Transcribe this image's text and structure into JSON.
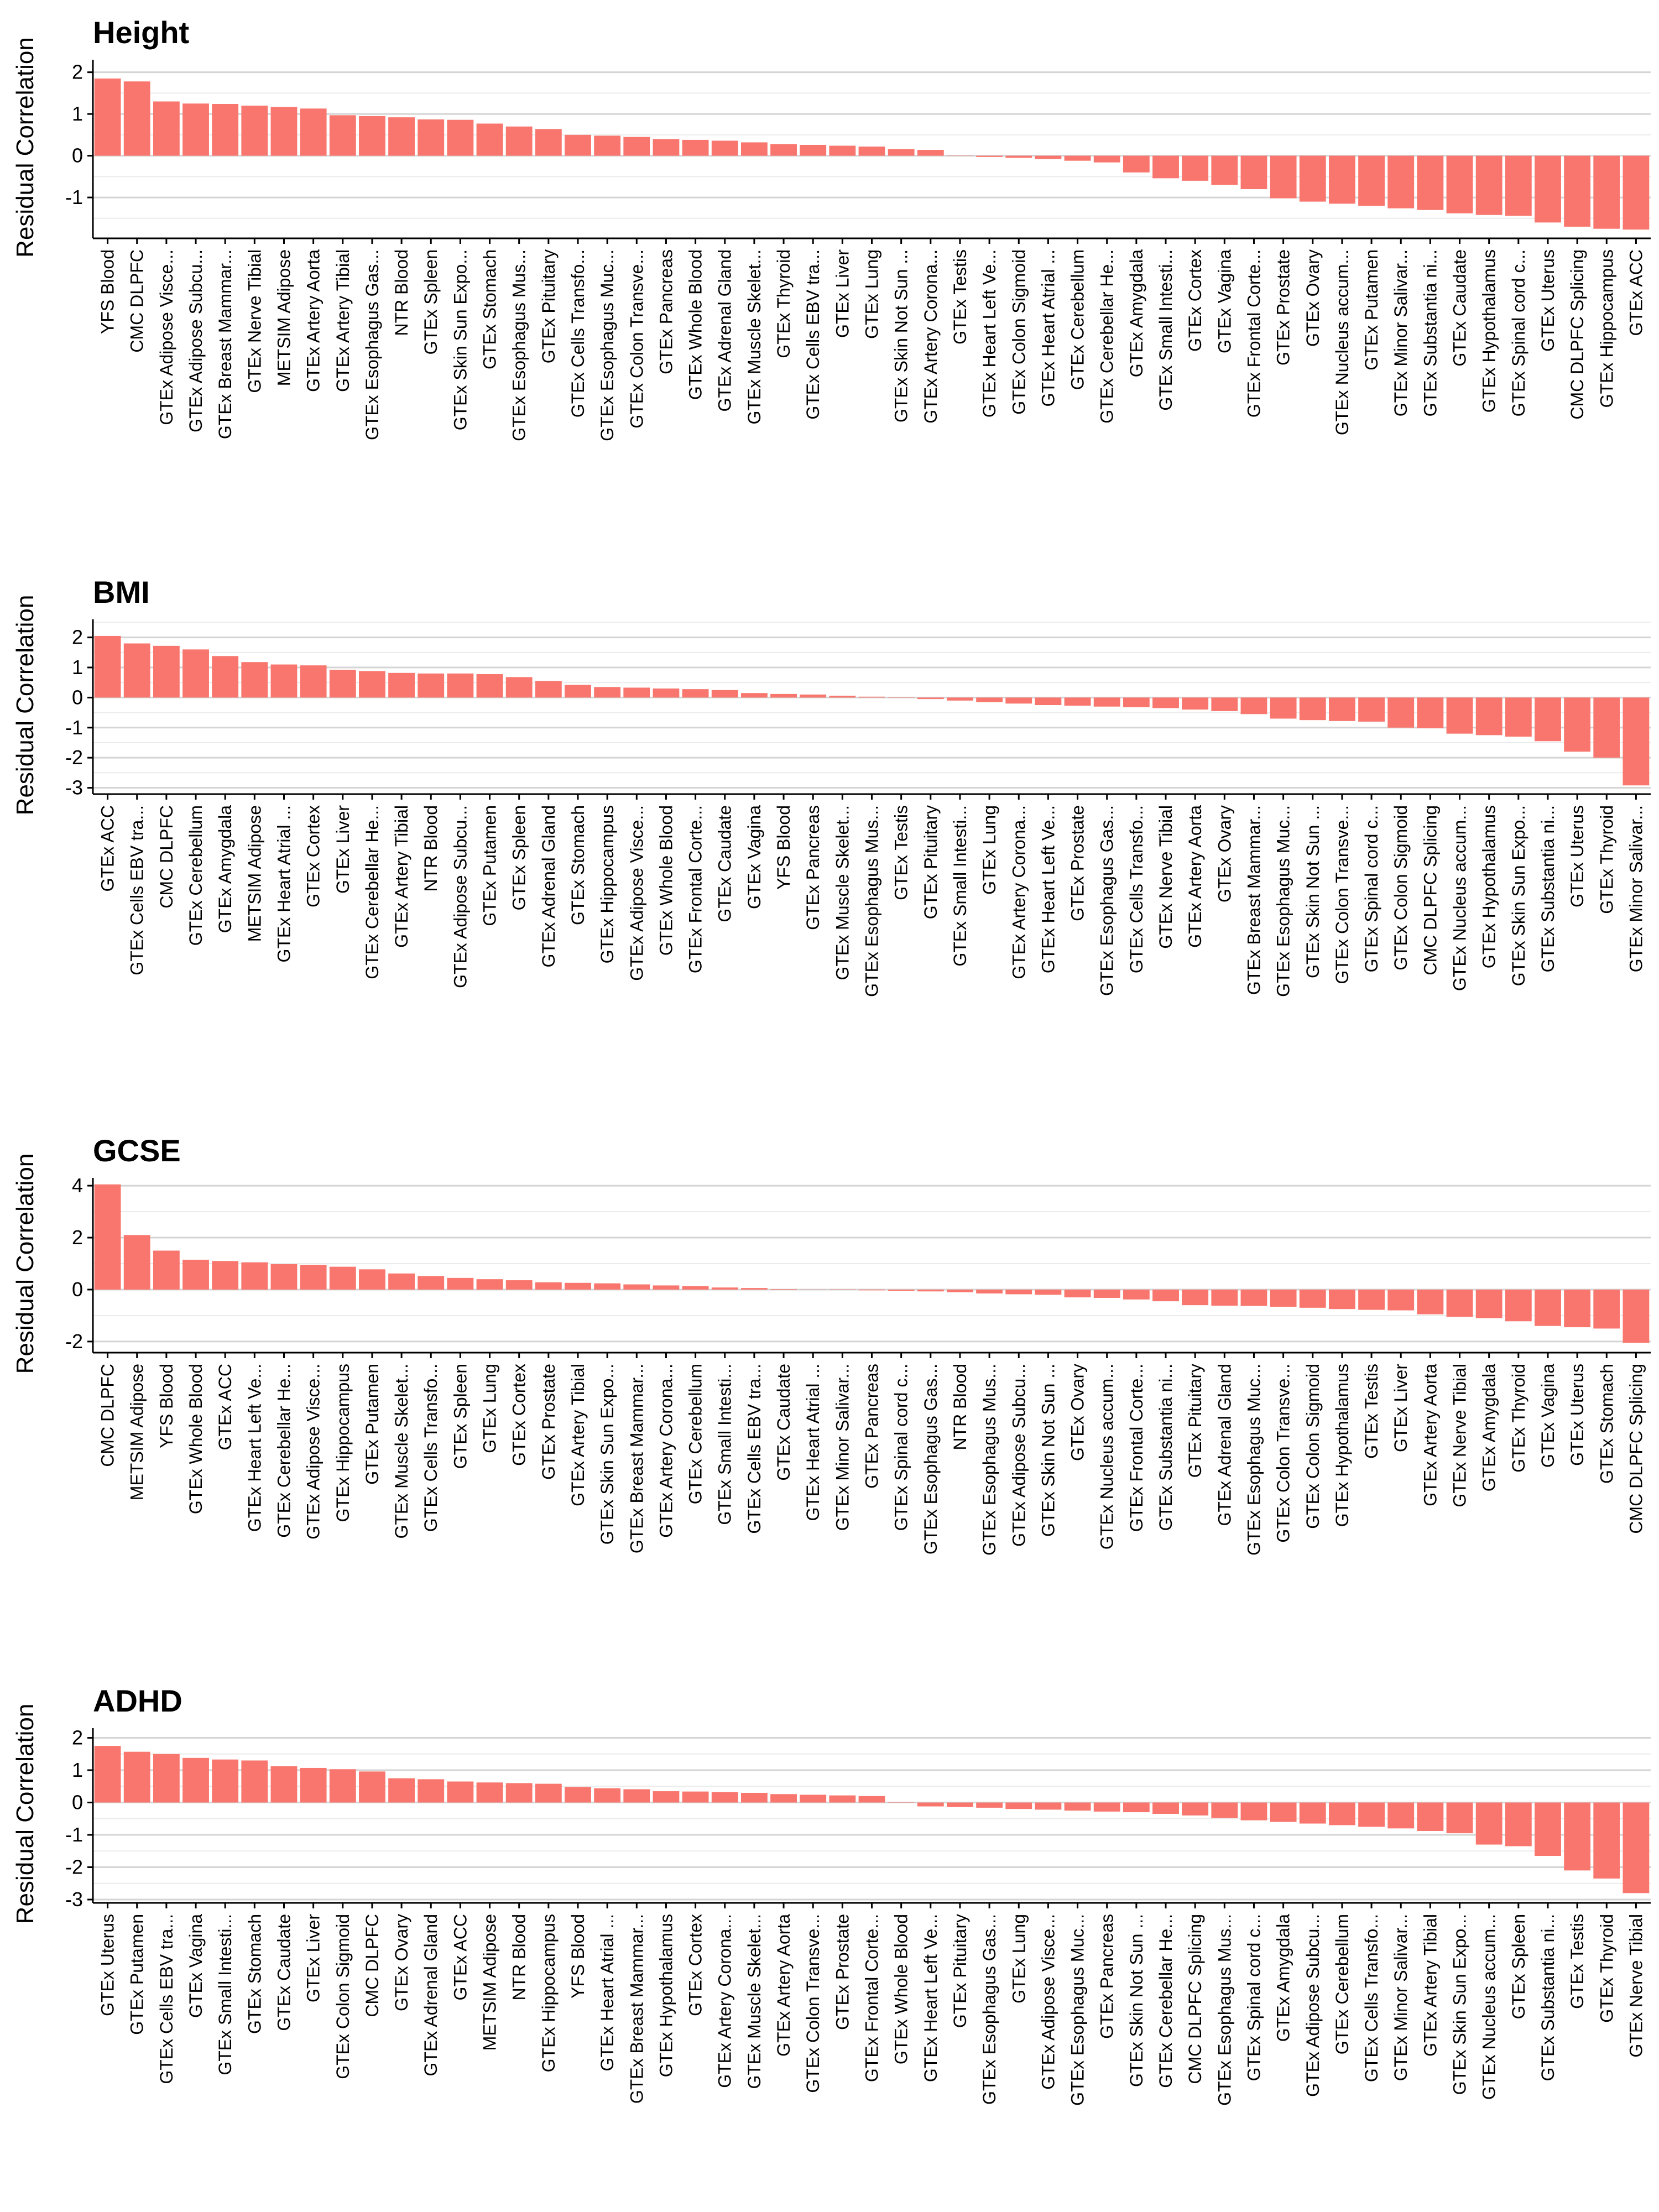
{
  "chart_data": [
    {
      "type": "bar",
      "title": "Height",
      "ylabel": "Residual Correlation",
      "xlabel": "",
      "ylim": [
        -1.9,
        2.3
      ],
      "yticks": [
        -1,
        0,
        1,
        2
      ],
      "grid": "horizontal",
      "bar_color": "#F8766D",
      "categories": [
        "YFS Blood",
        "CMC DLPFC",
        "GTEx Adipose Visce...",
        "GTEx Adipose Subcu...",
        "GTEx Breast Mammar...",
        "GTEx Nerve Tibial",
        "METSIM Adipose",
        "GTEx Artery Aorta",
        "GTEx Artery Tibial",
        "GTEx Esophagus Gas...",
        "NTR Blood",
        "GTEx Spleen",
        "GTEx Skin Sun Expo...",
        "GTEx Stomach",
        "GTEx Esophagus Mus...",
        "GTEx Pituitary",
        "GTEx Cells Transfo...",
        "GTEx Esophagus Muc...",
        "GTEx Colon Transve...",
        "GTEx Pancreas",
        "GTEx Whole Blood",
        "GTEx Adrenal Gland",
        "GTEx Muscle Skelet...",
        "GTEx Thyroid",
        "GTEx Cells EBV tra...",
        "GTEx Liver",
        "GTEx Lung",
        "GTEx Skin Not Sun ...",
        "GTEx Artery Corona...",
        "GTEx Testis",
        "GTEx Heart Left Ve...",
        "GTEx Colon Sigmoid",
        "GTEx Heart Atrial ...",
        "GTEx Cerebellum",
        "GTEx Cerebellar He...",
        "GTEx Amygdala",
        "GTEx Small Intesti...",
        "GTEx Cortex",
        "GTEx Vagina",
        "GTEx Frontal Corte...",
        "GTEx Prostate",
        "GTEx Ovary",
        "GTEx Nucleus accum...",
        "GTEx Putamen",
        "GTEx Minor Salivar...",
        "GTEx Substantia ni...",
        "GTEx Caudate",
        "GTEx Hypothalamus",
        "GTEx Spinal cord c...",
        "GTEx Uterus",
        "CMC DLPFC Splicing",
        "GTEx Hippocampus",
        "GTEx ACC"
      ],
      "values": [
        1.85,
        1.78,
        1.3,
        1.25,
        1.24,
        1.2,
        1.17,
        1.13,
        0.97,
        0.95,
        0.92,
        0.87,
        0.86,
        0.77,
        0.7,
        0.64,
        0.5,
        0.48,
        0.45,
        0.4,
        0.38,
        0.36,
        0.32,
        0.28,
        0.26,
        0.24,
        0.22,
        0.16,
        0.14,
        0.0,
        -0.03,
        -0.05,
        -0.08,
        -0.12,
        -0.16,
        -0.4,
        -0.54,
        -0.6,
        -0.7,
        -0.8,
        -1.02,
        -1.1,
        -1.15,
        -1.2,
        -1.26,
        -1.3,
        -1.38,
        -1.42,
        -1.44,
        -1.6,
        -1.7,
        -1.75,
        -1.77
      ]
    },
    {
      "type": "bar",
      "title": "BMI",
      "ylabel": "Residual Correlation",
      "xlabel": "",
      "ylim": [
        -3.1,
        2.6
      ],
      "yticks": [
        -3,
        -2,
        -1,
        0,
        1,
        2
      ],
      "grid": "horizontal",
      "bar_color": "#F8766D",
      "categories": [
        "GTEx ACC",
        "GTEx Cells EBV tra...",
        "CMC DLPFC",
        "GTEx Cerebellum",
        "GTEx Amygdala",
        "METSIM Adipose",
        "GTEx Heart Atrial ...",
        "GTEx Cortex",
        "GTEx Liver",
        "GTEx Cerebellar He...",
        "GTEx Artery Tibial",
        "NTR Blood",
        "GTEx Adipose Subcu...",
        "GTEx Putamen",
        "GTEx Spleen",
        "GTEx Adrenal Gland",
        "GTEx Stomach",
        "GTEx Hippocampus",
        "GTEx Adipose Visce...",
        "GTEx Whole Blood",
        "GTEx Frontal Corte...",
        "GTEx Caudate",
        "GTEx Vagina",
        "YFS Blood",
        "GTEx Pancreas",
        "GTEx Muscle Skelet...",
        "GTEx Esophagus Mus...",
        "GTEx Testis",
        "GTEx Pituitary",
        "GTEx Small Intesti...",
        "GTEx Lung",
        "GTEx Artery Corona...",
        "GTEx Heart Left Ve...",
        "GTEx Prostate",
        "GTEx Esophagus Gas...",
        "GTEx Cells Transfo...",
        "GTEx Nerve Tibial",
        "GTEx Artery Aorta",
        "GTEx Ovary",
        "GTEx Breast Mammar...",
        "GTEx Esophagus Muc...",
        "GTEx Skin Not Sun ...",
        "GTEx Colon Transve...",
        "GTEx Spinal cord c...",
        "GTEx Colon Sigmoid",
        "CMC DLPFC Splicing",
        "GTEx Nucleus accum...",
        "GTEx Hypothalamus",
        "GTEx Skin Sun Expo...",
        "GTEx Substantia ni...",
        "GTEx Uterus",
        "GTEx Thyroid",
        "GTEx Minor Salivar..."
      ],
      "values": [
        2.05,
        1.8,
        1.72,
        1.6,
        1.38,
        1.18,
        1.1,
        1.07,
        0.92,
        0.88,
        0.82,
        0.8,
        0.8,
        0.78,
        0.68,
        0.55,
        0.42,
        0.35,
        0.33,
        0.3,
        0.28,
        0.25,
        0.15,
        0.12,
        0.1,
        0.06,
        0.03,
        0.0,
        -0.05,
        -0.1,
        -0.15,
        -0.2,
        -0.25,
        -0.27,
        -0.3,
        -0.32,
        -0.35,
        -0.4,
        -0.45,
        -0.55,
        -0.7,
        -0.75,
        -0.78,
        -0.8,
        -1.0,
        -1.02,
        -1.2,
        -1.25,
        -1.3,
        -1.45,
        -1.8,
        -2.0,
        -2.92
      ]
    },
    {
      "type": "bar",
      "title": "GCSE",
      "ylabel": "Residual Correlation",
      "xlabel": "",
      "ylim": [
        -2.3,
        4.3
      ],
      "yticks": [
        -2,
        0,
        2,
        4
      ],
      "grid": "horizontal",
      "bar_color": "#F8766D",
      "categories": [
        "CMC DLPFC",
        "METSIM Adipose",
        "YFS Blood",
        "GTEx Whole Blood",
        "GTEx ACC",
        "GTEx Heart Left Ve...",
        "GTEx Cerebellar He...",
        "GTEx Adipose Visce...",
        "GTEx Hippocampus",
        "GTEx Putamen",
        "GTEx Muscle Skelet...",
        "GTEx Cells Transfo...",
        "GTEx Spleen",
        "GTEx Lung",
        "GTEx Cortex",
        "GTEx Prostate",
        "GTEx Artery Tibial",
        "GTEx Skin Sun Expo...",
        "GTEx Breast Mammar...",
        "GTEx Artery Corona...",
        "GTEx Cerebellum",
        "GTEx Small Intesti...",
        "GTEx Cells EBV tra...",
        "GTEx Caudate",
        "GTEx Heart Atrial ...",
        "GTEx Minor Salivar...",
        "GTEx Pancreas",
        "GTEx Spinal cord c...",
        "GTEx Esophagus Gas...",
        "NTR Blood",
        "GTEx Esophagus Mus...",
        "GTEx Adipose Subcu...",
        "GTEx Skin Not Sun ...",
        "GTEx Ovary",
        "GTEx Nucleus accum...",
        "GTEx Frontal Corte...",
        "GTEx Substantia ni...",
        "GTEx Pituitary",
        "GTEx Adrenal Gland",
        "GTEx Esophagus Muc...",
        "GTEx Colon Transve...",
        "GTEx Colon Sigmoid",
        "GTEx Hypothalamus",
        "GTEx Testis",
        "GTEx Liver",
        "GTEx Artery Aorta",
        "GTEx Nerve Tibial",
        "GTEx Amygdala",
        "GTEx Thyroid",
        "GTEx Vagina",
        "GTEx Uterus",
        "GTEx Stomach",
        "CMC DLPFC Splicing"
      ],
      "values": [
        4.05,
        2.1,
        1.5,
        1.15,
        1.1,
        1.05,
        0.98,
        0.95,
        0.88,
        0.78,
        0.62,
        0.52,
        0.45,
        0.4,
        0.36,
        0.28,
        0.26,
        0.24,
        0.2,
        0.16,
        0.13,
        0.08,
        0.06,
        0.02,
        0.0,
        -0.02,
        -0.03,
        -0.05,
        -0.07,
        -0.1,
        -0.15,
        -0.18,
        -0.2,
        -0.3,
        -0.32,
        -0.38,
        -0.45,
        -0.6,
        -0.62,
        -0.63,
        -0.66,
        -0.7,
        -0.75,
        -0.78,
        -0.8,
        -0.95,
        -1.05,
        -1.1,
        -1.22,
        -1.4,
        -1.45,
        -1.5,
        -2.05
      ]
    },
    {
      "type": "bar",
      "title": "ADHD",
      "ylabel": "Residual Correlation",
      "xlabel": "",
      "ylim": [
        -3.0,
        2.3
      ],
      "yticks": [
        -3,
        -2,
        -1,
        0,
        1,
        2
      ],
      "grid": "horizontal",
      "bar_color": "#F8766D",
      "categories": [
        "GTEx Uterus",
        "GTEx Putamen",
        "GTEx Cells EBV tra...",
        "GTEx Vagina",
        "GTEx Small Intesti...",
        "GTEx Stomach",
        "GTEx Caudate",
        "GTEx Liver",
        "GTEx Colon Sigmoid",
        "CMC DLPFC",
        "GTEx Ovary",
        "GTEx Adrenal Gland",
        "GTEx ACC",
        "METSIM Adipose",
        "NTR Blood",
        "GTEx Hippocampus",
        "YFS Blood",
        "GTEx Heart Atrial ...",
        "GTEx Breast Mammar...",
        "GTEx Hypothalamus",
        "GTEx Cortex",
        "GTEx Artery Corona...",
        "GTEx Muscle Skelet...",
        "GTEx Artery Aorta",
        "GTEx Colon Transve...",
        "GTEx Prostate",
        "GTEx Frontal Corte...",
        "GTEx Whole Blood",
        "GTEx Heart Left Ve...",
        "GTEx Pituitary",
        "GTEx Esophagus Gas...",
        "GTEx Lung",
        "GTEx Adipose Visce...",
        "GTEx Esophagus Muc...",
        "GTEx Pancreas",
        "GTEx Skin Not Sun ...",
        "GTEx Cerebellar He...",
        "CMC DLPFC Splicing",
        "GTEx Esophagus Mus...",
        "GTEx Spinal cord c...",
        "GTEx Amygdala",
        "GTEx Adipose Subcu...",
        "GTEx Cerebellum",
        "GTEx Cells Transfo...",
        "GTEx Minor Salivar...",
        "GTEx Artery Tibial",
        "GTEx Skin Sun Expo...",
        "GTEx Nucleus accum...",
        "GTEx Spleen",
        "GTEx Substantia ni...",
        "GTEx Testis",
        "GTEx Thyroid",
        "GTEx Nerve Tibial"
      ],
      "values": [
        1.75,
        1.57,
        1.5,
        1.38,
        1.33,
        1.3,
        1.12,
        1.07,
        1.03,
        0.96,
        0.75,
        0.72,
        0.65,
        0.62,
        0.6,
        0.58,
        0.48,
        0.44,
        0.41,
        0.35,
        0.34,
        0.32,
        0.3,
        0.26,
        0.24,
        0.22,
        0.2,
        0.0,
        -0.12,
        -0.14,
        -0.16,
        -0.2,
        -0.22,
        -0.25,
        -0.28,
        -0.3,
        -0.35,
        -0.4,
        -0.48,
        -0.55,
        -0.6,
        -0.65,
        -0.7,
        -0.75,
        -0.8,
        -0.88,
        -0.95,
        -1.3,
        -1.35,
        -1.65,
        -2.1,
        -2.35,
        -2.8
      ]
    }
  ]
}
